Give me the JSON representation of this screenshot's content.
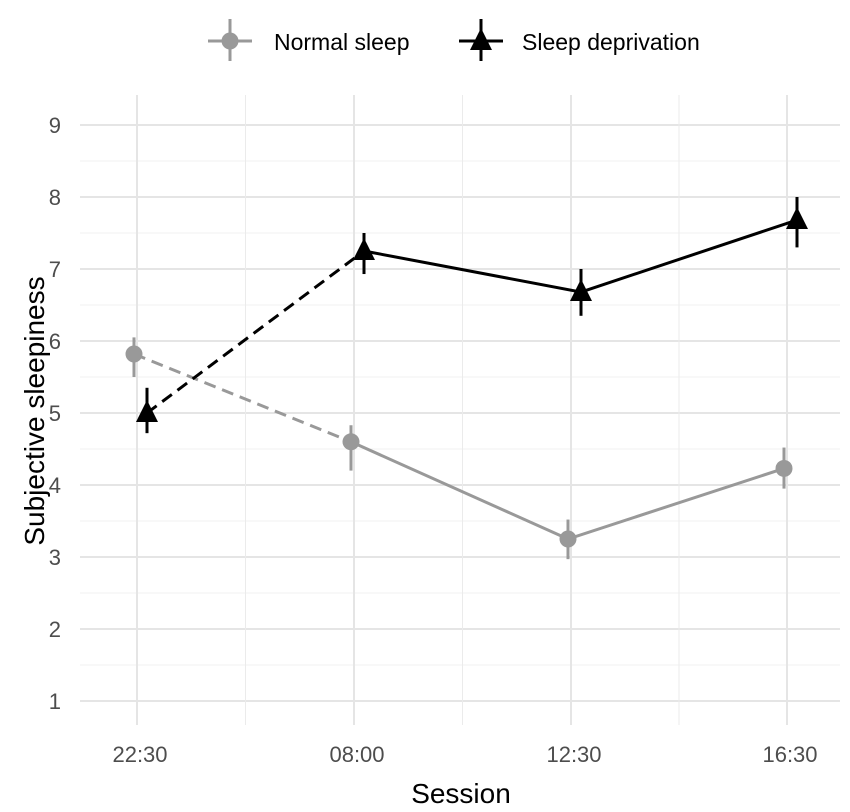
{
  "chart_data": {
    "type": "line",
    "xlabel": "Session",
    "ylabel": "Subjective sleepiness",
    "categories": [
      "22:30",
      "08:00",
      "12:30",
      "16:30"
    ],
    "yticks": [
      1,
      2,
      3,
      4,
      5,
      6,
      7,
      8,
      9
    ],
    "ylim": [
      0.6,
      9.3
    ],
    "grid": true,
    "legend_position": "top",
    "series": [
      {
        "name": "Normal sleep",
        "marker": "circle",
        "color": "#999999",
        "values": [
          5.82,
          4.6,
          3.25,
          4.23
        ],
        "err_low": [
          5.5,
          4.2,
          2.97,
          3.95
        ],
        "err_high": [
          6.05,
          4.83,
          3.52,
          4.52
        ],
        "first_segment_dashed": true
      },
      {
        "name": "Sleep deprivation",
        "marker": "triangle",
        "color": "#000000",
        "values": [
          5.0,
          7.25,
          6.68,
          7.68
        ],
        "err_low": [
          4.72,
          6.93,
          6.35,
          7.3
        ],
        "err_high": [
          5.35,
          7.5,
          7.0,
          8.0
        ],
        "first_segment_dashed": true
      }
    ]
  }
}
